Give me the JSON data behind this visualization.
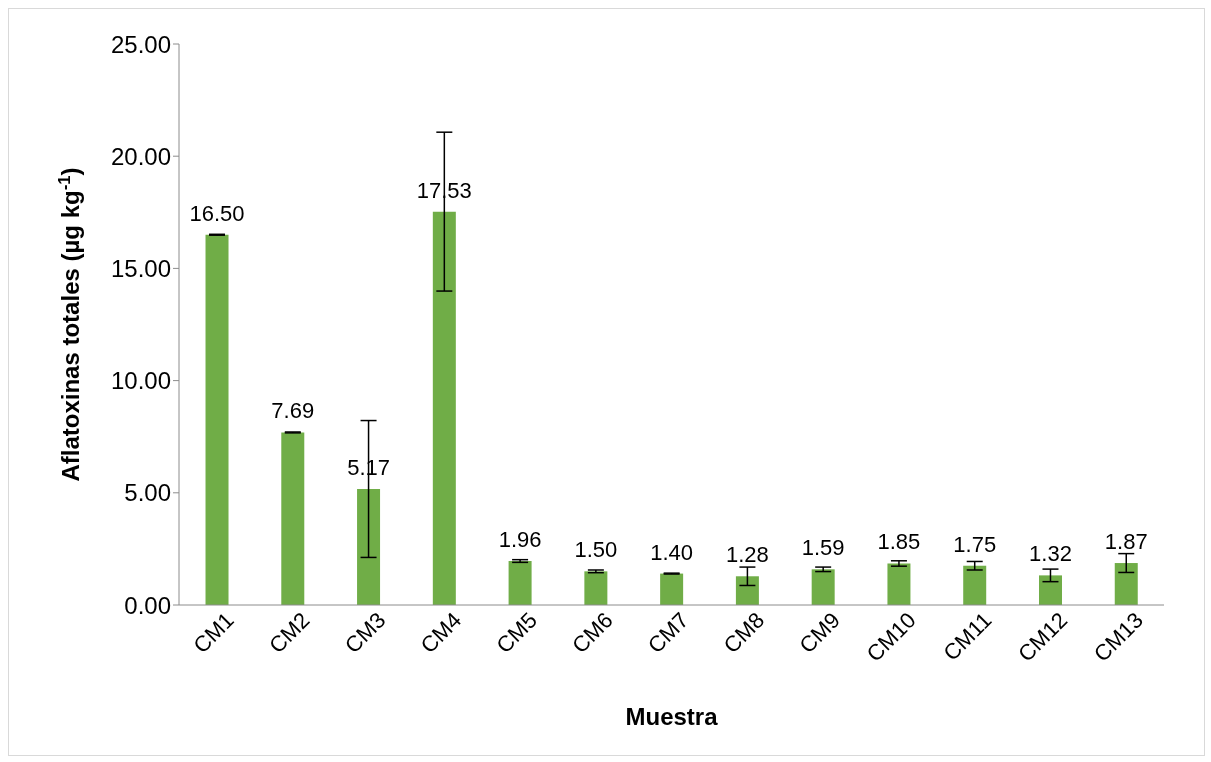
{
  "chart_data": {
    "type": "bar",
    "xlabel": "Muestra",
    "ylabel": "Aflatoxinas totales (µg kg$^{-1}$)",
    "categories": [
      "CM1",
      "CM2",
      "CM3",
      "CM4",
      "CM5",
      "CM6",
      "CM7",
      "CM8",
      "CM9",
      "CM10",
      "CM11",
      "CM12",
      "CM13"
    ],
    "values": [
      16.5,
      7.69,
      5.17,
      17.53,
      1.96,
      1.5,
      1.4,
      1.28,
      1.59,
      1.85,
      1.75,
      1.32,
      1.87
    ],
    "value_labels": [
      "16.50",
      "7.69",
      "5.17",
      "17.53",
      "1.96",
      "1.50",
      "1.40",
      "1.28",
      "1.59",
      "1.85",
      "1.75",
      "1.32",
      "1.87"
    ],
    "errors": [
      0.02,
      0.02,
      3.05,
      3.54,
      0.06,
      0.06,
      0.02,
      0.41,
      0.1,
      0.12,
      0.19,
      0.28,
      0.42
    ],
    "color": "#70ad47",
    "ylim": [
      0,
      25
    ],
    "yticks": [
      {
        "value": 0,
        "label": "0.00"
      },
      {
        "value": 5,
        "label": "5.00"
      },
      {
        "value": 10,
        "label": "10.00"
      },
      {
        "value": 15,
        "label": "15.00"
      },
      {
        "value": 20,
        "label": "20.00"
      },
      {
        "value": 25,
        "label": "25.00"
      }
    ],
    "grid": false,
    "legend": false
  }
}
